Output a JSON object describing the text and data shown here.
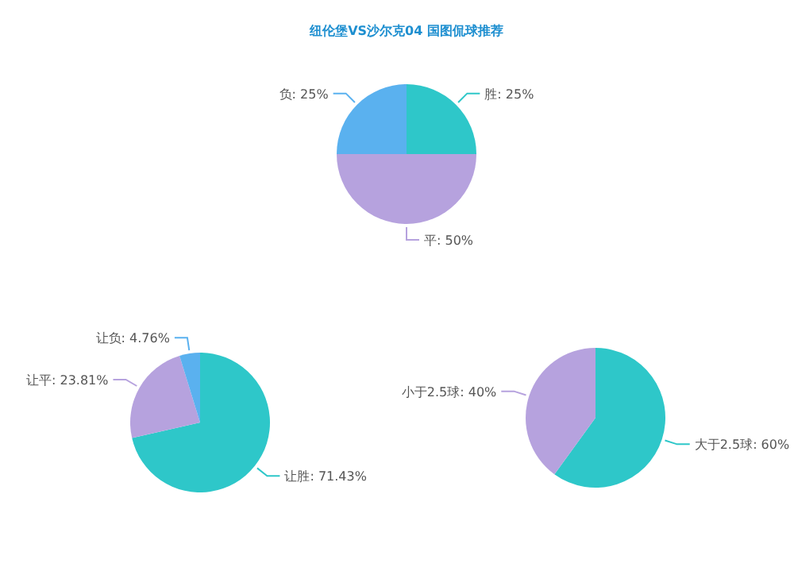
{
  "chart_data": [
    {
      "type": "pie",
      "title": "纽伦堡VS沙尔克04 国图侃球推荐",
      "categories": [
        "胜",
        "平",
        "负"
      ],
      "values": [
        25,
        50,
        25
      ],
      "colors": [
        "#2ec7c9",
        "#b6a2de",
        "#5ab1ef"
      ],
      "value_labels": [
        "25%",
        "50%",
        "25%"
      ]
    },
    {
      "type": "pie",
      "categories": [
        "让胜",
        "让平",
        "让负"
      ],
      "values": [
        71.43,
        23.81,
        4.76
      ],
      "colors": [
        "#2ec7c9",
        "#b6a2de",
        "#5ab1ef"
      ],
      "value_labels": [
        "71.43%",
        "23.81%",
        "4.76%"
      ]
    },
    {
      "type": "pie",
      "categories": [
        "大于2.5球",
        "小于2.5球"
      ],
      "values": [
        60,
        40
      ],
      "colors": [
        "#2ec7c9",
        "#b6a2de"
      ],
      "value_labels": [
        "60%",
        "40%"
      ]
    }
  ]
}
